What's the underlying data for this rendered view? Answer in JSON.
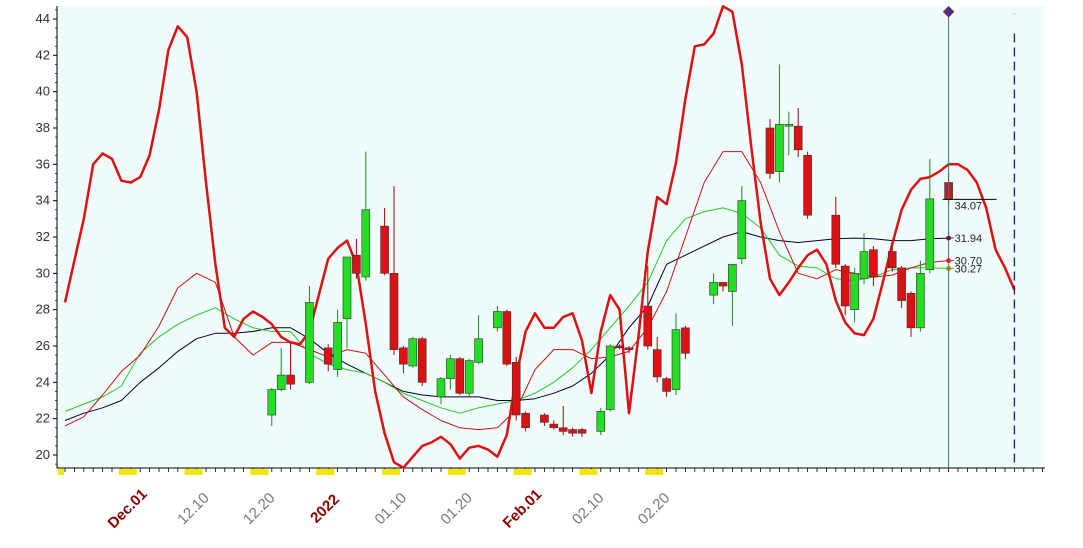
{
  "chart_data": {
    "type": "candlestick",
    "title": "",
    "xlabel": "",
    "ylabel": "",
    "ylim": [
      19,
      45
    ],
    "yticks": [
      "20",
      "22",
      "24",
      "26",
      "28",
      "30",
      "32",
      "34",
      "36",
      "38",
      "40",
      "42",
      "44"
    ],
    "xticks": [
      {
        "label": "Dec.01",
        "bar": 7,
        "color": "#8b0000",
        "bold": true
      },
      {
        "label": "12.10",
        "bar": 14,
        "color": "#777777",
        "bold": false
      },
      {
        "label": "12.20",
        "bar": 21,
        "color": "#777777",
        "bold": false
      },
      {
        "label": "2022",
        "bar": 28,
        "color": "#8b0000",
        "bold": true
      },
      {
        "label": "01.10",
        "bar": 35,
        "color": "#777777",
        "bold": false
      },
      {
        "label": "01.20",
        "bar": 42,
        "color": "#777777",
        "bold": false
      },
      {
        "label": "Feb.01",
        "bar": 49,
        "color": "#8b0000",
        "bold": true
      },
      {
        "label": "02.10",
        "bar": 56,
        "color": "#777777",
        "bold": false
      },
      {
        "label": "02.20",
        "bar": 63,
        "color": "#777777",
        "bold": false
      }
    ],
    "grid": false,
    "colors": {
      "background": "#f0fcfc",
      "up": "#22dd22",
      "down": "#dd1111",
      "projection": "#dd1111",
      "ma_short": "#cc1111",
      "ma_mid": "#22cc22",
      "ma_long": "#000033",
      "cursor": "#3a7a7a",
      "future": "#1a2a7a"
    },
    "end_labels": [
      {
        "text": "34.07",
        "y": 34.07,
        "color": "#000000"
      },
      {
        "text": "31.94",
        "y": 31.94,
        "color": "#5a1a4a"
      },
      {
        "text": "30.70",
        "y": 30.7,
        "color": "#dd2222"
      },
      {
        "text": "30.27",
        "y": 30.27,
        "color": "#888811"
      }
    ],
    "candles": [
      [
        22,
        22.2,
        23.6,
        21.6,
        23.7
      ],
      [
        23,
        23.6,
        24.4,
        23.5,
        25.9
      ],
      [
        24,
        24.4,
        23.9,
        23.6,
        26.2
      ],
      [
        26,
        24.0,
        28.4,
        23.9,
        29.3
      ],
      [
        28,
        25.9,
        25.0,
        24.6,
        26.1
      ],
      [
        29,
        24.7,
        27.3,
        24.3,
        28.0
      ],
      [
        30,
        27.5,
        30.9,
        25.9,
        30.9
      ],
      [
        31,
        31.0,
        30.0,
        29.7,
        31.9
      ],
      [
        32,
        29.8,
        33.5,
        29.6,
        36.7
      ],
      [
        34,
        32.6,
        30.0,
        29.9,
        33.6
      ],
      [
        35,
        30.0,
        25.8,
        25.5,
        34.8
      ],
      [
        36,
        25.9,
        25.0,
        24.5,
        26.0
      ],
      [
        37,
        24.9,
        26.4,
        24.8,
        26.5
      ],
      [
        38,
        26.4,
        24.0,
        23.8,
        26.5
      ],
      [
        40,
        23.2,
        24.2,
        22.8,
        24.3
      ],
      [
        41,
        24.2,
        25.3,
        23.6,
        25.5
      ],
      [
        42,
        25.3,
        23.4,
        23.3,
        25.4
      ],
      [
        43,
        23.4,
        25.2,
        23.2,
        25.3
      ],
      [
        44,
        25.1,
        26.4,
        25.0,
        27.7
      ],
      [
        46,
        27.0,
        27.9,
        26.8,
        28.2
      ],
      [
        47,
        27.9,
        25.0,
        24.9,
        28.0
      ],
      [
        48,
        25.1,
        22.2,
        21.9,
        25.4
      ],
      [
        49,
        22.3,
        21.5,
        21.3,
        22.4
      ],
      [
        51,
        22.2,
        21.8,
        21.6,
        22.3
      ],
      [
        52,
        21.7,
        21.5,
        21.4,
        21.9
      ],
      [
        53,
        21.5,
        21.3,
        21.1,
        22.7
      ],
      [
        54,
        21.4,
        21.2,
        21.0,
        21.5
      ],
      [
        55,
        21.4,
        21.2,
        21.0,
        21.5
      ],
      [
        57,
        21.3,
        22.4,
        21.1,
        22.6
      ],
      [
        58,
        22.5,
        26.0,
        22.4,
        26.1
      ],
      [
        59,
        26.0,
        25.9,
        25.8,
        26.1
      ],
      [
        60,
        25.9,
        25.8,
        25.6,
        26.0
      ],
      [
        62,
        28.2,
        26.0,
        25.8,
        30.4
      ],
      [
        63,
        25.8,
        24.3,
        24.0,
        26.5
      ],
      [
        64,
        24.2,
        23.5,
        23.2,
        24.3
      ],
      [
        65,
        23.6,
        26.9,
        23.3,
        27.8
      ],
      [
        66,
        27.0,
        25.6,
        25.3,
        27.1
      ],
      [
        69,
        28.8,
        29.5,
        28.3,
        30.0
      ],
      [
        70,
        29.5,
        29.3,
        29.0,
        29.5
      ],
      [
        71,
        29.0,
        30.5,
        27.1,
        30.5
      ],
      [
        72,
        30.8,
        34.0,
        30.5,
        34.8
      ],
      [
        75,
        38.0,
        35.5,
        35.2,
        38.5
      ],
      [
        76,
        35.6,
        38.2,
        35.0,
        41.5
      ],
      [
        77,
        38.1,
        38.2,
        36.5,
        38.9
      ],
      [
        78,
        38.1,
        36.8,
        36.4,
        39.1
      ],
      [
        79,
        36.5,
        33.2,
        33.0,
        36.7
      ],
      [
        82,
        33.2,
        30.5,
        30.3,
        34.2
      ],
      [
        83,
        30.4,
        28.2,
        27.7,
        30.5
      ],
      [
        84,
        28.0,
        30.0,
        27.3,
        30.3
      ],
      [
        85,
        29.7,
        31.2,
        29.4,
        32.2
      ],
      [
        86,
        31.3,
        29.8,
        29.3,
        31.5
      ],
      [
        88,
        31.2,
        30.3,
        30.1,
        31.5
      ],
      [
        89,
        30.3,
        28.5,
        28.1,
        30.4
      ],
      [
        90,
        28.9,
        27.0,
        26.5,
        29.0
      ],
      [
        91,
        27.0,
        30.0,
        26.8,
        30.7
      ],
      [
        92,
        30.2,
        34.1,
        30.0,
        36.3
      ],
      [
        94,
        35.0,
        34.07,
        33.8,
        35.6
      ]
    ],
    "projection_line": [
      [
        0,
        28.4
      ],
      [
        2,
        33.0
      ],
      [
        3,
        36.0
      ],
      [
        4,
        36.6
      ],
      [
        5,
        36.3
      ],
      [
        6,
        35.1
      ],
      [
        7,
        35.0
      ],
      [
        8,
        35.3
      ],
      [
        9,
        36.5
      ],
      [
        10,
        39.0
      ],
      [
        11,
        42.3
      ],
      [
        12,
        43.6
      ],
      [
        13,
        43.0
      ],
      [
        14,
        40.0
      ],
      [
        15,
        35.0
      ],
      [
        16,
        30.5
      ],
      [
        17,
        27.0
      ],
      [
        18,
        26.5
      ],
      [
        19,
        27.5
      ],
      [
        20,
        27.9
      ],
      [
        21,
        27.6
      ],
      [
        22,
        27.2
      ],
      [
        23,
        26.5
      ],
      [
        24,
        26.2
      ],
      [
        25,
        26.1
      ],
      [
        26,
        26.8
      ],
      [
        27,
        28.8
      ],
      [
        28,
        30.8
      ],
      [
        29,
        31.4
      ],
      [
        30,
        31.8
      ],
      [
        31,
        30.5
      ],
      [
        32,
        27.2
      ],
      [
        33,
        23.5
      ],
      [
        34,
        21.2
      ],
      [
        35,
        19.6
      ],
      [
        36,
        19.3
      ],
      [
        37,
        19.9
      ],
      [
        38,
        20.5
      ],
      [
        39,
        20.7
      ],
      [
        40,
        21.0
      ],
      [
        41,
        20.6
      ],
      [
        42,
        19.8
      ],
      [
        43,
        20.4
      ],
      [
        44,
        20.5
      ],
      [
        45,
        20.3
      ],
      [
        46,
        19.9
      ],
      [
        47,
        21.1
      ],
      [
        48,
        24.3
      ],
      [
        49,
        26.8
      ],
      [
        50,
        27.8
      ],
      [
        51,
        27.0
      ],
      [
        52,
        27.0
      ],
      [
        53,
        27.6
      ],
      [
        54,
        27.8
      ],
      [
        55,
        26.3
      ],
      [
        56,
        23.4
      ],
      [
        57,
        26.8
      ],
      [
        58,
        28.8
      ],
      [
        59,
        28.0
      ],
      [
        60,
        22.3
      ],
      [
        61,
        26.5
      ],
      [
        62,
        31.2
      ],
      [
        63,
        34.2
      ],
      [
        64,
        33.8
      ],
      [
        65,
        36.1
      ],
      [
        66,
        39.6
      ],
      [
        67,
        42.5
      ],
      [
        68,
        42.6
      ],
      [
        69,
        43.2
      ],
      [
        70,
        44.7
      ],
      [
        71,
        44.4
      ],
      [
        72,
        41.5
      ],
      [
        73,
        37.0
      ],
      [
        74,
        32.8
      ],
      [
        75,
        29.7
      ],
      [
        76,
        28.8
      ],
      [
        77,
        29.5
      ],
      [
        78,
        30.3
      ],
      [
        79,
        31.0
      ],
      [
        80,
        31.3
      ],
      [
        81,
        30.5
      ],
      [
        82,
        28.5
      ],
      [
        83,
        27.3
      ],
      [
        84,
        26.7
      ],
      [
        85,
        26.6
      ],
      [
        86,
        27.5
      ],
      [
        87,
        29.5
      ],
      [
        88,
        31.6
      ],
      [
        89,
        33.5
      ],
      [
        90,
        34.6
      ],
      [
        91,
        35.2
      ],
      [
        92,
        35.3
      ],
      [
        93,
        35.6
      ],
      [
        94,
        36.0
      ],
      [
        95,
        36.0
      ],
      [
        96,
        35.7
      ],
      [
        97,
        35.0
      ],
      [
        98,
        33.6
      ],
      [
        99,
        31.3
      ],
      [
        100,
        30.3
      ],
      [
        101,
        29.1
      ]
    ],
    "ma_short": [
      [
        0,
        21.6
      ],
      [
        2,
        22.1
      ],
      [
        4,
        23.3
      ],
      [
        6,
        24.6
      ],
      [
        8,
        25.5
      ],
      [
        10,
        27.1
      ],
      [
        12,
        29.2
      ],
      [
        14,
        30.0
      ],
      [
        16,
        29.5
      ],
      [
        18,
        26.5
      ],
      [
        20,
        25.5
      ],
      [
        22,
        26.2
      ],
      [
        24,
        26.2
      ],
      [
        26,
        25.8
      ],
      [
        28,
        25.4
      ],
      [
        30,
        25.8
      ],
      [
        32,
        25.6
      ],
      [
        34,
        24.4
      ],
      [
        36,
        23.2
      ],
      [
        38,
        22.5
      ],
      [
        40,
        21.9
      ],
      [
        42,
        21.5
      ],
      [
        44,
        21.4
      ],
      [
        46,
        21.5
      ],
      [
        48,
        22.5
      ],
      [
        50,
        24.7
      ],
      [
        52,
        25.8
      ],
      [
        54,
        25.8
      ],
      [
        56,
        25.3
      ],
      [
        58,
        25.4
      ],
      [
        60,
        25.7
      ],
      [
        62,
        27.0
      ],
      [
        64,
        29.0
      ],
      [
        66,
        32.0
      ],
      [
        68,
        35.0
      ],
      [
        70,
        36.7
      ],
      [
        72,
        36.7
      ],
      [
        74,
        35.0
      ],
      [
        76,
        32.3
      ],
      [
        78,
        30.0
      ],
      [
        80,
        29.7
      ],
      [
        82,
        30.2
      ],
      [
        84,
        30.0
      ],
      [
        86,
        29.8
      ],
      [
        88,
        29.9
      ],
      [
        90,
        30.3
      ],
      [
        92,
        30.6
      ],
      [
        94,
        30.7
      ]
    ],
    "ma_mid": [
      [
        0,
        22.4
      ],
      [
        2,
        22.8
      ],
      [
        4,
        23.2
      ],
      [
        6,
        23.8
      ],
      [
        8,
        25.6
      ],
      [
        10,
        26.5
      ],
      [
        12,
        27.2
      ],
      [
        14,
        27.7
      ],
      [
        16,
        28.1
      ],
      [
        18,
        27.5
      ],
      [
        20,
        27.0
      ],
      [
        22,
        26.8
      ],
      [
        24,
        26.8
      ],
      [
        26,
        25.6
      ],
      [
        28,
        25.0
      ],
      [
        30,
        24.7
      ],
      [
        32,
        24.5
      ],
      [
        34,
        24.0
      ],
      [
        36,
        23.4
      ],
      [
        38,
        23.0
      ],
      [
        40,
        22.6
      ],
      [
        42,
        22.3
      ],
      [
        44,
        22.6
      ],
      [
        46,
        22.8
      ],
      [
        48,
        23.0
      ],
      [
        50,
        23.4
      ],
      [
        52,
        24.0
      ],
      [
        54,
        24.8
      ],
      [
        56,
        25.8
      ],
      [
        58,
        27.0
      ],
      [
        60,
        28.2
      ],
      [
        62,
        29.5
      ],
      [
        64,
        31.8
      ],
      [
        66,
        33.0
      ],
      [
        68,
        33.4
      ],
      [
        70,
        33.6
      ],
      [
        72,
        33.3
      ],
      [
        74,
        32.5
      ],
      [
        76,
        31.0
      ],
      [
        78,
        30.4
      ],
      [
        80,
        30.3
      ],
      [
        82,
        29.7
      ],
      [
        84,
        29.6
      ],
      [
        86,
        29.8
      ],
      [
        88,
        30.2
      ],
      [
        90,
        30.3
      ],
      [
        92,
        30.3
      ],
      [
        94,
        30.27
      ]
    ],
    "ma_long": [
      [
        0,
        21.9
      ],
      [
        2,
        22.3
      ],
      [
        4,
        22.6
      ],
      [
        6,
        23.0
      ],
      [
        8,
        24.0
      ],
      [
        10,
        24.8
      ],
      [
        12,
        25.7
      ],
      [
        14,
        26.4
      ],
      [
        16,
        26.7
      ],
      [
        18,
        26.7
      ],
      [
        20,
        26.8
      ],
      [
        22,
        27.0
      ],
      [
        24,
        27.0
      ],
      [
        26,
        26.4
      ],
      [
        28,
        25.6
      ],
      [
        30,
        25.0
      ],
      [
        32,
        24.5
      ],
      [
        34,
        24.0
      ],
      [
        36,
        23.5
      ],
      [
        38,
        23.3
      ],
      [
        40,
        23.2
      ],
      [
        42,
        23.2
      ],
      [
        44,
        23.2
      ],
      [
        46,
        23.0
      ],
      [
        48,
        23.0
      ],
      [
        50,
        23.1
      ],
      [
        52,
        23.4
      ],
      [
        54,
        23.8
      ],
      [
        56,
        24.5
      ],
      [
        58,
        25.5
      ],
      [
        60,
        27.0
      ],
      [
        62,
        28.2
      ],
      [
        64,
        30.5
      ],
      [
        66,
        31.0
      ],
      [
        68,
        31.5
      ],
      [
        70,
        32.0
      ],
      [
        72,
        32.3
      ],
      [
        74,
        32.0
      ],
      [
        76,
        31.8
      ],
      [
        78,
        31.7
      ],
      [
        80,
        31.8
      ],
      [
        82,
        31.9
      ],
      [
        84,
        31.94
      ],
      [
        86,
        31.9
      ],
      [
        88,
        31.8
      ],
      [
        90,
        31.8
      ],
      [
        92,
        31.9
      ],
      [
        94,
        31.94
      ]
    ],
    "cursor_bar": 94,
    "future_bar": 101,
    "last_bar": 106
  }
}
